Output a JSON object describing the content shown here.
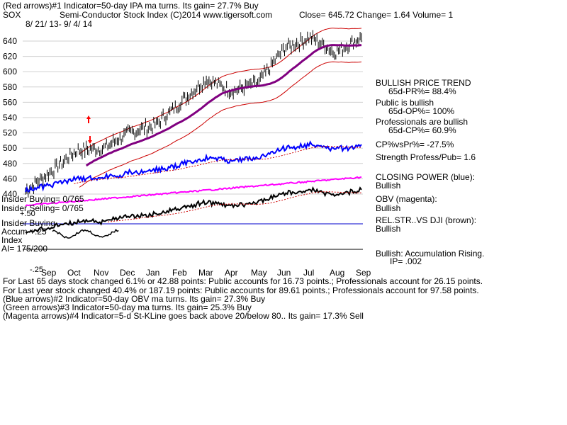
{
  "header": {
    "line1": "(Red arrows)#1 Indicator=50-day IPA ma turns. Its gain= 27.7% Buy",
    "symbol": "SOX",
    "title": "Semi-Conductor Stock Index  (C)2014 www.tigersoft.com",
    "close": "Close=  645.72  Change= 1.64 Volume= 1",
    "date_range": "8/ 21/ 13- 9/ 4/ 14"
  },
  "right_panel": {
    "trend": "BULLISH PRICE TREND",
    "pr": "65d-PR%= 88.4%",
    "public": "Public is bullish",
    "op": "65d-OP%= 100%",
    "pros": "Professionals are bullish",
    "cp": "65d-CP%= 60.9%",
    "cpvspr": "CP%vsPr%= -27.5%",
    "strength": "Strength Profess/Pub= 1.6",
    "closing_power": "CLOSING POWER (blue):",
    "closing_power_val": "Bullish",
    "obv": "OBV (magenta):",
    "obv_val": "Bullish",
    "relstr": "REL.STR..VS DJI (brown):",
    "relstr_val": "Bullish",
    "accum": "Bullish: Accumulation Rising.",
    "ip": "IP=  .002"
  },
  "left_labels": {
    "insider_buying": "Insider Buying= 0/765",
    "insider_selling": "Insider Selling= 0/765",
    "plus50": "+.50",
    "insider_buying2": "Insider Buying",
    "accum": "Accum   +.25",
    "index": "Index",
    "ai": "AI= 175/200",
    "minus25": "-.25"
  },
  "footer": {
    "l1": "For Last 65 days stock changed  6.1% or  42.88 points:  Public accounts for  16.73 points.;  Professionals account for  26.15 points.",
    "l2": "For Last year stock changed  40.4% or  187.19 points:  Public accounts for  89.61 points.;  Professionals account for  97.58 points.",
    "l3": "(Blue arrows)#2 Indicator=50-day OBV ma turns. Its gain= 27.3% Buy",
    "l4": "(Green arrows)#3 Indicator=50-day ma turns. Its gain= 25.3% Buy",
    "l5": "(Magenta arrows)#4 Indicator=5-d St-KLine goes back above 20/below 80.. Its gain= 17.3% Sell"
  },
  "colors": {
    "band": "#cc0000",
    "ma": "#800080",
    "closing_power": "#0000ff",
    "obv": "#ff00ff",
    "relstr": "#000000",
    "accum_line": "#000000",
    "arrow": "#ff0000",
    "dotted": "#cc0000"
  },
  "chart_data": {
    "type": "line",
    "x_ticks": [
      "Sep",
      "Oct",
      "Nov",
      "Dec",
      "Jan",
      "Feb",
      "Mar",
      "Apr",
      "May",
      "Jun",
      "Jul",
      "Aug",
      "Sep"
    ],
    "y_ticks": [
      440,
      460,
      480,
      500,
      520,
      540,
      560,
      580,
      600,
      620,
      640
    ],
    "ylim": [
      440,
      660
    ],
    "price_close": [
      {
        "month": "Aug-13 end",
        "value": 445
      },
      {
        "month": "Sep",
        "value": 470
      },
      {
        "month": "Oct",
        "value": 497
      },
      {
        "month": "Nov",
        "value": 500
      },
      {
        "month": "Dec",
        "value": 520
      },
      {
        "month": "Jan",
        "value": 530
      },
      {
        "month": "Feb",
        "value": 560
      },
      {
        "month": "Mar",
        "value": 590
      },
      {
        "month": "Apr",
        "value": 575
      },
      {
        "month": "May",
        "value": 585
      },
      {
        "month": "Jun",
        "value": 630
      },
      {
        "month": "Jul",
        "value": 645
      },
      {
        "month": "Aug",
        "value": 625
      },
      {
        "month": "Sep",
        "value": 645.72
      }
    ],
    "ma50": [
      {
        "month": "Nov",
        "value": 495
      },
      {
        "month": "Dec",
        "value": 505
      },
      {
        "month": "Jan",
        "value": 515
      },
      {
        "month": "Feb",
        "value": 530
      },
      {
        "month": "Mar",
        "value": 555
      },
      {
        "month": "Apr",
        "value": 570
      },
      {
        "month": "May",
        "value": 575
      },
      {
        "month": "Jun",
        "value": 590
      },
      {
        "month": "Jul",
        "value": 610
      },
      {
        "month": "Aug",
        "value": 615
      },
      {
        "month": "Sep",
        "value": 630
      }
    ]
  }
}
